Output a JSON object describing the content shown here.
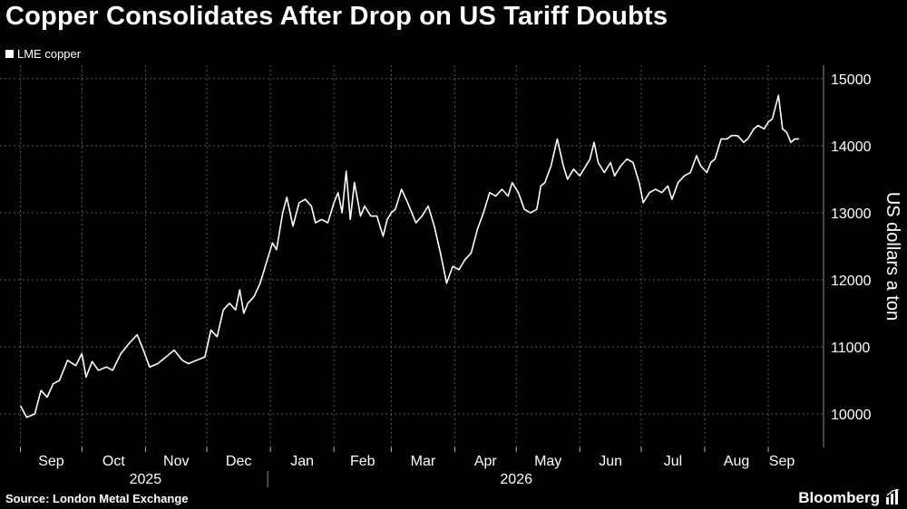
{
  "header": {
    "title": "Copper Consolidates After Drop on US Tariff Doubts"
  },
  "legend": {
    "label": "LME copper"
  },
  "footer": {
    "source": "Source: London Metal Exchange",
    "brand": "Bloomberg"
  },
  "icons": {
    "brand": "bloomberg-chart-icon"
  },
  "colors": {
    "background": "#000000",
    "line": "#ffffff",
    "grid": "#5a5a5a"
  },
  "chart_data": {
    "type": "line",
    "title": "Copper Consolidates After Drop on US Tariff Doubts",
    "ylabel": "US dollars a ton",
    "ylim": [
      9500,
      15200
    ],
    "y_ticks": [
      10000,
      11000,
      12000,
      13000,
      14000,
      15000
    ],
    "y_axis_side": "right",
    "grid": true,
    "legend_position": "top-left",
    "x_ticks": [
      {
        "label": "Sep",
        "date": "2025-09-01"
      },
      {
        "label": "Oct",
        "date": "2025-10-01"
      },
      {
        "label": "Nov",
        "date": "2025-11-01"
      },
      {
        "label": "Dec",
        "date": "2025-12-01"
      },
      {
        "label": "Jan",
        "date": "2026-01-01"
      },
      {
        "label": "Feb",
        "date": "2026-02-01"
      },
      {
        "label": "Mar",
        "date": "2026-03-01"
      },
      {
        "label": "Apr",
        "date": "2026-04-01"
      },
      {
        "label": "May",
        "date": "2026-05-01"
      },
      {
        "label": "Jun",
        "date": "2026-06-01"
      },
      {
        "label": "Jul",
        "date": "2026-07-01"
      },
      {
        "label": "Aug",
        "date": "2026-08-01"
      },
      {
        "label": "Sep",
        "date": "2026-09-01"
      }
    ],
    "year_labels": [
      {
        "label": "2025",
        "date": "2025-11-01"
      },
      {
        "label": "2026",
        "date": "2026-05-01"
      }
    ],
    "series": [
      {
        "name": "LME copper",
        "points": [
          [
            "2025-09-01",
            10120
          ],
          [
            "2025-09-04",
            9950
          ],
          [
            "2025-09-08",
            10000
          ],
          [
            "2025-09-11",
            10350
          ],
          [
            "2025-09-14",
            10250
          ],
          [
            "2025-09-17",
            10450
          ],
          [
            "2025-09-20",
            10500
          ],
          [
            "2025-09-24",
            10800
          ],
          [
            "2025-09-28",
            10720
          ],
          [
            "2025-10-01",
            10900
          ],
          [
            "2025-10-03",
            10550
          ],
          [
            "2025-10-06",
            10780
          ],
          [
            "2025-10-09",
            10650
          ],
          [
            "2025-10-13",
            10700
          ],
          [
            "2025-10-16",
            10650
          ],
          [
            "2025-10-20",
            10900
          ],
          [
            "2025-10-24",
            11050
          ],
          [
            "2025-10-28",
            11180
          ],
          [
            "2025-10-31",
            10950
          ],
          [
            "2025-11-03",
            10700
          ],
          [
            "2025-11-07",
            10750
          ],
          [
            "2025-11-11",
            10850
          ],
          [
            "2025-11-15",
            10950
          ],
          [
            "2025-11-19",
            10800
          ],
          [
            "2025-11-22",
            10750
          ],
          [
            "2025-11-26",
            10800
          ],
          [
            "2025-11-30",
            10850
          ],
          [
            "2025-12-03",
            11250
          ],
          [
            "2025-12-06",
            11150
          ],
          [
            "2025-12-09",
            11550
          ],
          [
            "2025-12-12",
            11650
          ],
          [
            "2025-12-15",
            11550
          ],
          [
            "2025-12-17",
            11850
          ],
          [
            "2025-12-19",
            11500
          ],
          [
            "2025-12-21",
            11650
          ],
          [
            "2025-12-24",
            11750
          ],
          [
            "2025-12-27",
            11950
          ],
          [
            "2025-12-30",
            12250
          ],
          [
            "2026-01-02",
            12550
          ],
          [
            "2026-01-04",
            12450
          ],
          [
            "2026-01-07",
            13000
          ],
          [
            "2026-01-09",
            13230
          ],
          [
            "2026-01-12",
            12800
          ],
          [
            "2026-01-15",
            13150
          ],
          [
            "2026-01-18",
            13200
          ],
          [
            "2026-01-21",
            13100
          ],
          [
            "2026-01-23",
            12850
          ],
          [
            "2026-01-26",
            12900
          ],
          [
            "2026-01-29",
            12850
          ],
          [
            "2026-02-01",
            13150
          ],
          [
            "2026-02-03",
            13300
          ],
          [
            "2026-02-05",
            13000
          ],
          [
            "2026-02-07",
            13620
          ],
          [
            "2026-02-09",
            12900
          ],
          [
            "2026-02-11",
            13450
          ],
          [
            "2026-02-14",
            12950
          ],
          [
            "2026-02-16",
            13100
          ],
          [
            "2026-02-19",
            12950
          ],
          [
            "2026-02-22",
            12950
          ],
          [
            "2026-02-25",
            12650
          ],
          [
            "2026-02-27",
            12900
          ],
          [
            "2026-03-01",
            13000
          ],
          [
            "2026-03-03",
            13050
          ],
          [
            "2026-03-06",
            13350
          ],
          [
            "2026-03-09",
            13150
          ],
          [
            "2026-03-11",
            13000
          ],
          [
            "2026-03-13",
            12850
          ],
          [
            "2026-03-16",
            12950
          ],
          [
            "2026-03-19",
            13100
          ],
          [
            "2026-03-22",
            12800
          ],
          [
            "2026-03-25",
            12400
          ],
          [
            "2026-03-28",
            11950
          ],
          [
            "2026-03-31",
            12200
          ],
          [
            "2026-04-03",
            12150
          ],
          [
            "2026-04-06",
            12300
          ],
          [
            "2026-04-09",
            12400
          ],
          [
            "2026-04-12",
            12750
          ],
          [
            "2026-04-15",
            13000
          ],
          [
            "2026-04-18",
            13300
          ],
          [
            "2026-04-21",
            13250
          ],
          [
            "2026-04-24",
            13350
          ],
          [
            "2026-04-27",
            13250
          ],
          [
            "2026-04-29",
            13450
          ],
          [
            "2026-05-02",
            13300
          ],
          [
            "2026-05-05",
            13050
          ],
          [
            "2026-05-08",
            13000
          ],
          [
            "2026-05-11",
            13050
          ],
          [
            "2026-05-13",
            13400
          ],
          [
            "2026-05-15",
            13450
          ],
          [
            "2026-05-18",
            13700
          ],
          [
            "2026-05-21",
            14100
          ],
          [
            "2026-05-24",
            13700
          ],
          [
            "2026-05-26",
            13500
          ],
          [
            "2026-05-29",
            13650
          ],
          [
            "2026-06-01",
            13550
          ],
          [
            "2026-06-04",
            13700
          ],
          [
            "2026-06-06",
            13800
          ],
          [
            "2026-06-08",
            14050
          ],
          [
            "2026-06-10",
            13750
          ],
          [
            "2026-06-13",
            13600
          ],
          [
            "2026-06-16",
            13750
          ],
          [
            "2026-06-18",
            13550
          ],
          [
            "2026-06-21",
            13700
          ],
          [
            "2026-06-24",
            13800
          ],
          [
            "2026-06-27",
            13750
          ],
          [
            "2026-06-30",
            13450
          ],
          [
            "2026-07-02",
            13150
          ],
          [
            "2026-07-05",
            13300
          ],
          [
            "2026-07-08",
            13350
          ],
          [
            "2026-07-11",
            13300
          ],
          [
            "2026-07-14",
            13400
          ],
          [
            "2026-07-16",
            13200
          ],
          [
            "2026-07-19",
            13450
          ],
          [
            "2026-07-22",
            13550
          ],
          [
            "2026-07-25",
            13600
          ],
          [
            "2026-07-28",
            13850
          ],
          [
            "2026-07-30",
            13700
          ],
          [
            "2026-08-02",
            13600
          ],
          [
            "2026-08-04",
            13750
          ],
          [
            "2026-08-06",
            13800
          ],
          [
            "2026-08-09",
            14100
          ],
          [
            "2026-08-12",
            14100
          ],
          [
            "2026-08-14",
            14150
          ],
          [
            "2026-08-17",
            14150
          ],
          [
            "2026-08-20",
            14050
          ],
          [
            "2026-08-22",
            14100
          ],
          [
            "2026-08-25",
            14250
          ],
          [
            "2026-08-27",
            14300
          ],
          [
            "2026-08-30",
            14250
          ],
          [
            "2026-09-01",
            14350
          ],
          [
            "2026-09-03",
            14400
          ],
          [
            "2026-09-06",
            14750
          ],
          [
            "2026-09-08",
            14250
          ],
          [
            "2026-09-10",
            14200
          ],
          [
            "2026-09-12",
            14050
          ],
          [
            "2026-09-14",
            14100
          ],
          [
            "2026-09-16",
            14100
          ]
        ]
      }
    ]
  }
}
